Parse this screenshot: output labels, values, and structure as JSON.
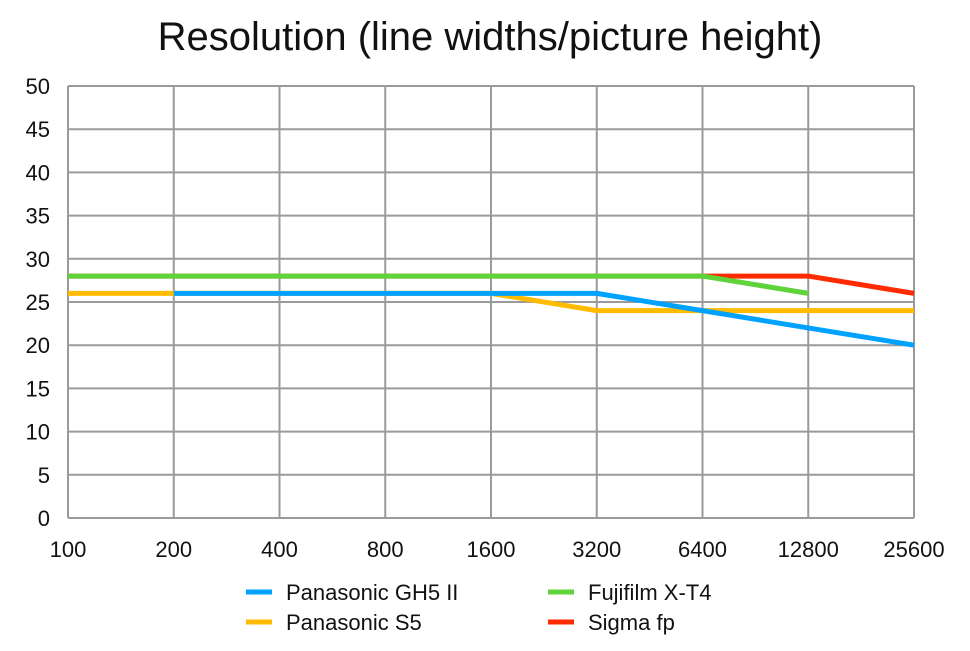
{
  "chart_data": {
    "type": "line",
    "title": "Resolution (line widths/picture height)",
    "xlabel": "",
    "ylabel": "",
    "categories": [
      "100",
      "200",
      "400",
      "800",
      "1600",
      "3200",
      "6400",
      "12800",
      "25600"
    ],
    "ylim": [
      0,
      50
    ],
    "yticks": [
      0,
      5,
      10,
      15,
      20,
      25,
      30,
      35,
      40,
      45,
      50
    ],
    "grid": true,
    "legend_position": "bottom",
    "series": [
      {
        "name": "Sigma fp",
        "color": "#ff2a00",
        "values": [
          28,
          28,
          28,
          28,
          28,
          28,
          28,
          28,
          26
        ]
      },
      {
        "name": "Panasonic S5",
        "color": "#ffbb00",
        "values": [
          26,
          26,
          26,
          26,
          26,
          24,
          24,
          24,
          24
        ]
      },
      {
        "name": "Panasonic GH5 II",
        "color": "#00a2ff",
        "values": [
          null,
          26,
          26,
          26,
          26,
          26,
          24,
          22,
          20
        ]
      },
      {
        "name": "Fujifilm X-T4",
        "color": "#5fd43a",
        "values": [
          28,
          28,
          28,
          28,
          28,
          28,
          28,
          26,
          null
        ]
      }
    ],
    "legend_order": [
      "Panasonic GH5 II",
      "Fujifilm X-T4",
      "Panasonic S5",
      "Sigma fp"
    ]
  }
}
